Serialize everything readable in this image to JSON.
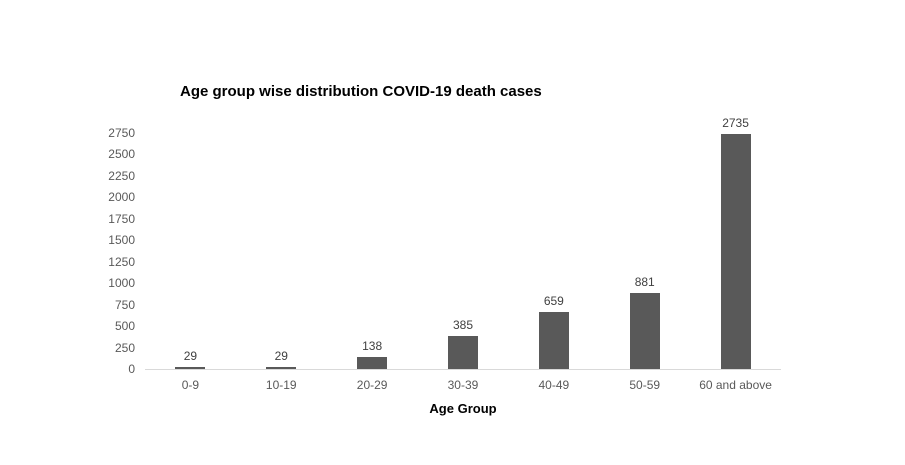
{
  "page": {
    "background_color": "#ffffff"
  },
  "chart_data": {
    "type": "bar",
    "title": "Age group wise distribution COVID-19 death cases",
    "xlabel": "Age Group",
    "ylabel": "",
    "categories": [
      "0-9",
      "10-19",
      "20-29",
      "30-39",
      "40-49",
      "50-59",
      "60 and above"
    ],
    "values": [
      29,
      29,
      138,
      385,
      659,
      881,
      2735
    ],
    "data_labels": [
      "29",
      "29",
      "138",
      "385",
      "659",
      "881",
      "2735"
    ],
    "y_ticks": [
      0,
      250,
      500,
      750,
      1000,
      1250,
      1500,
      1750,
      2000,
      2250,
      2500,
      2750
    ],
    "ylim": [
      0,
      2750
    ],
    "grid": false,
    "legend": "none",
    "colors": {
      "bar": "#595959",
      "axis_line": "#d9d9d9",
      "tick_label": "#595959",
      "data_label": "#404040",
      "title": "#000000"
    }
  }
}
